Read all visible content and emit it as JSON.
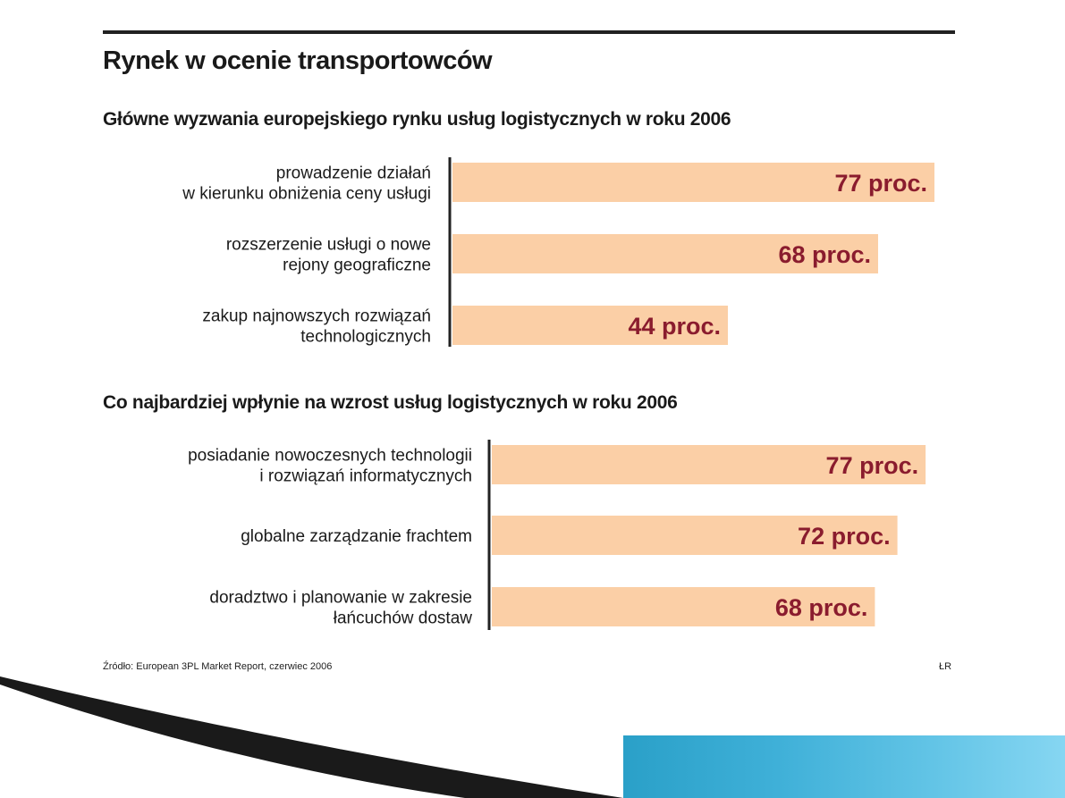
{
  "title": "Rynek w ocenie transportowców",
  "sections": [
    {
      "title": "Główne wyzwania europejskiego rynku usług logistycznych w roku 2006"
    },
    {
      "title": "Co najbardziej wpłynie na wzrost usług logistycznych w roku 2006"
    }
  ],
  "chart_data": [
    {
      "type": "bar",
      "orientation": "horizontal",
      "title": "Główne wyzwania europejskiego rynku usług logistycznych w roku 2006",
      "categories": [
        [
          "prowadzenie działań",
          "w kierunku obniżenia ceny usługi"
        ],
        [
          "rozszerzenie  usługi o nowe",
          "rejony geograficzne"
        ],
        [
          "zakup najnowszych rozwiązań",
          "technologicznych"
        ]
      ],
      "values": [
        77,
        68,
        44
      ],
      "value_labels": [
        "77 proc.",
        "68 proc.",
        "44 proc."
      ],
      "xlim": [
        0,
        100
      ]
    },
    {
      "type": "bar",
      "orientation": "horizontal",
      "title": "Co najbardziej wpłynie na wzrost usług logistycznych w roku 2006",
      "categories": [
        [
          "posiadanie nowoczesnych technologii",
          "i rozwiązań informatycznych"
        ],
        [
          "globalne zarządzanie frachtem"
        ],
        [
          "doradztwo i planowanie w zakresie",
          "łańcuchów dostaw"
        ]
      ],
      "values": [
        77,
        72,
        68
      ],
      "value_labels": [
        "77 proc.",
        "72 proc.",
        "68 proc."
      ],
      "xlim": [
        0,
        100
      ]
    }
  ],
  "source": "Źródło: European 3PL Market Report, czerwiec 2006",
  "initials": "ŁR",
  "colors": {
    "bar": "#fbcfa6",
    "value": "#8a1c2e",
    "axis": "#222222",
    "accent": "#2aa0c8"
  }
}
